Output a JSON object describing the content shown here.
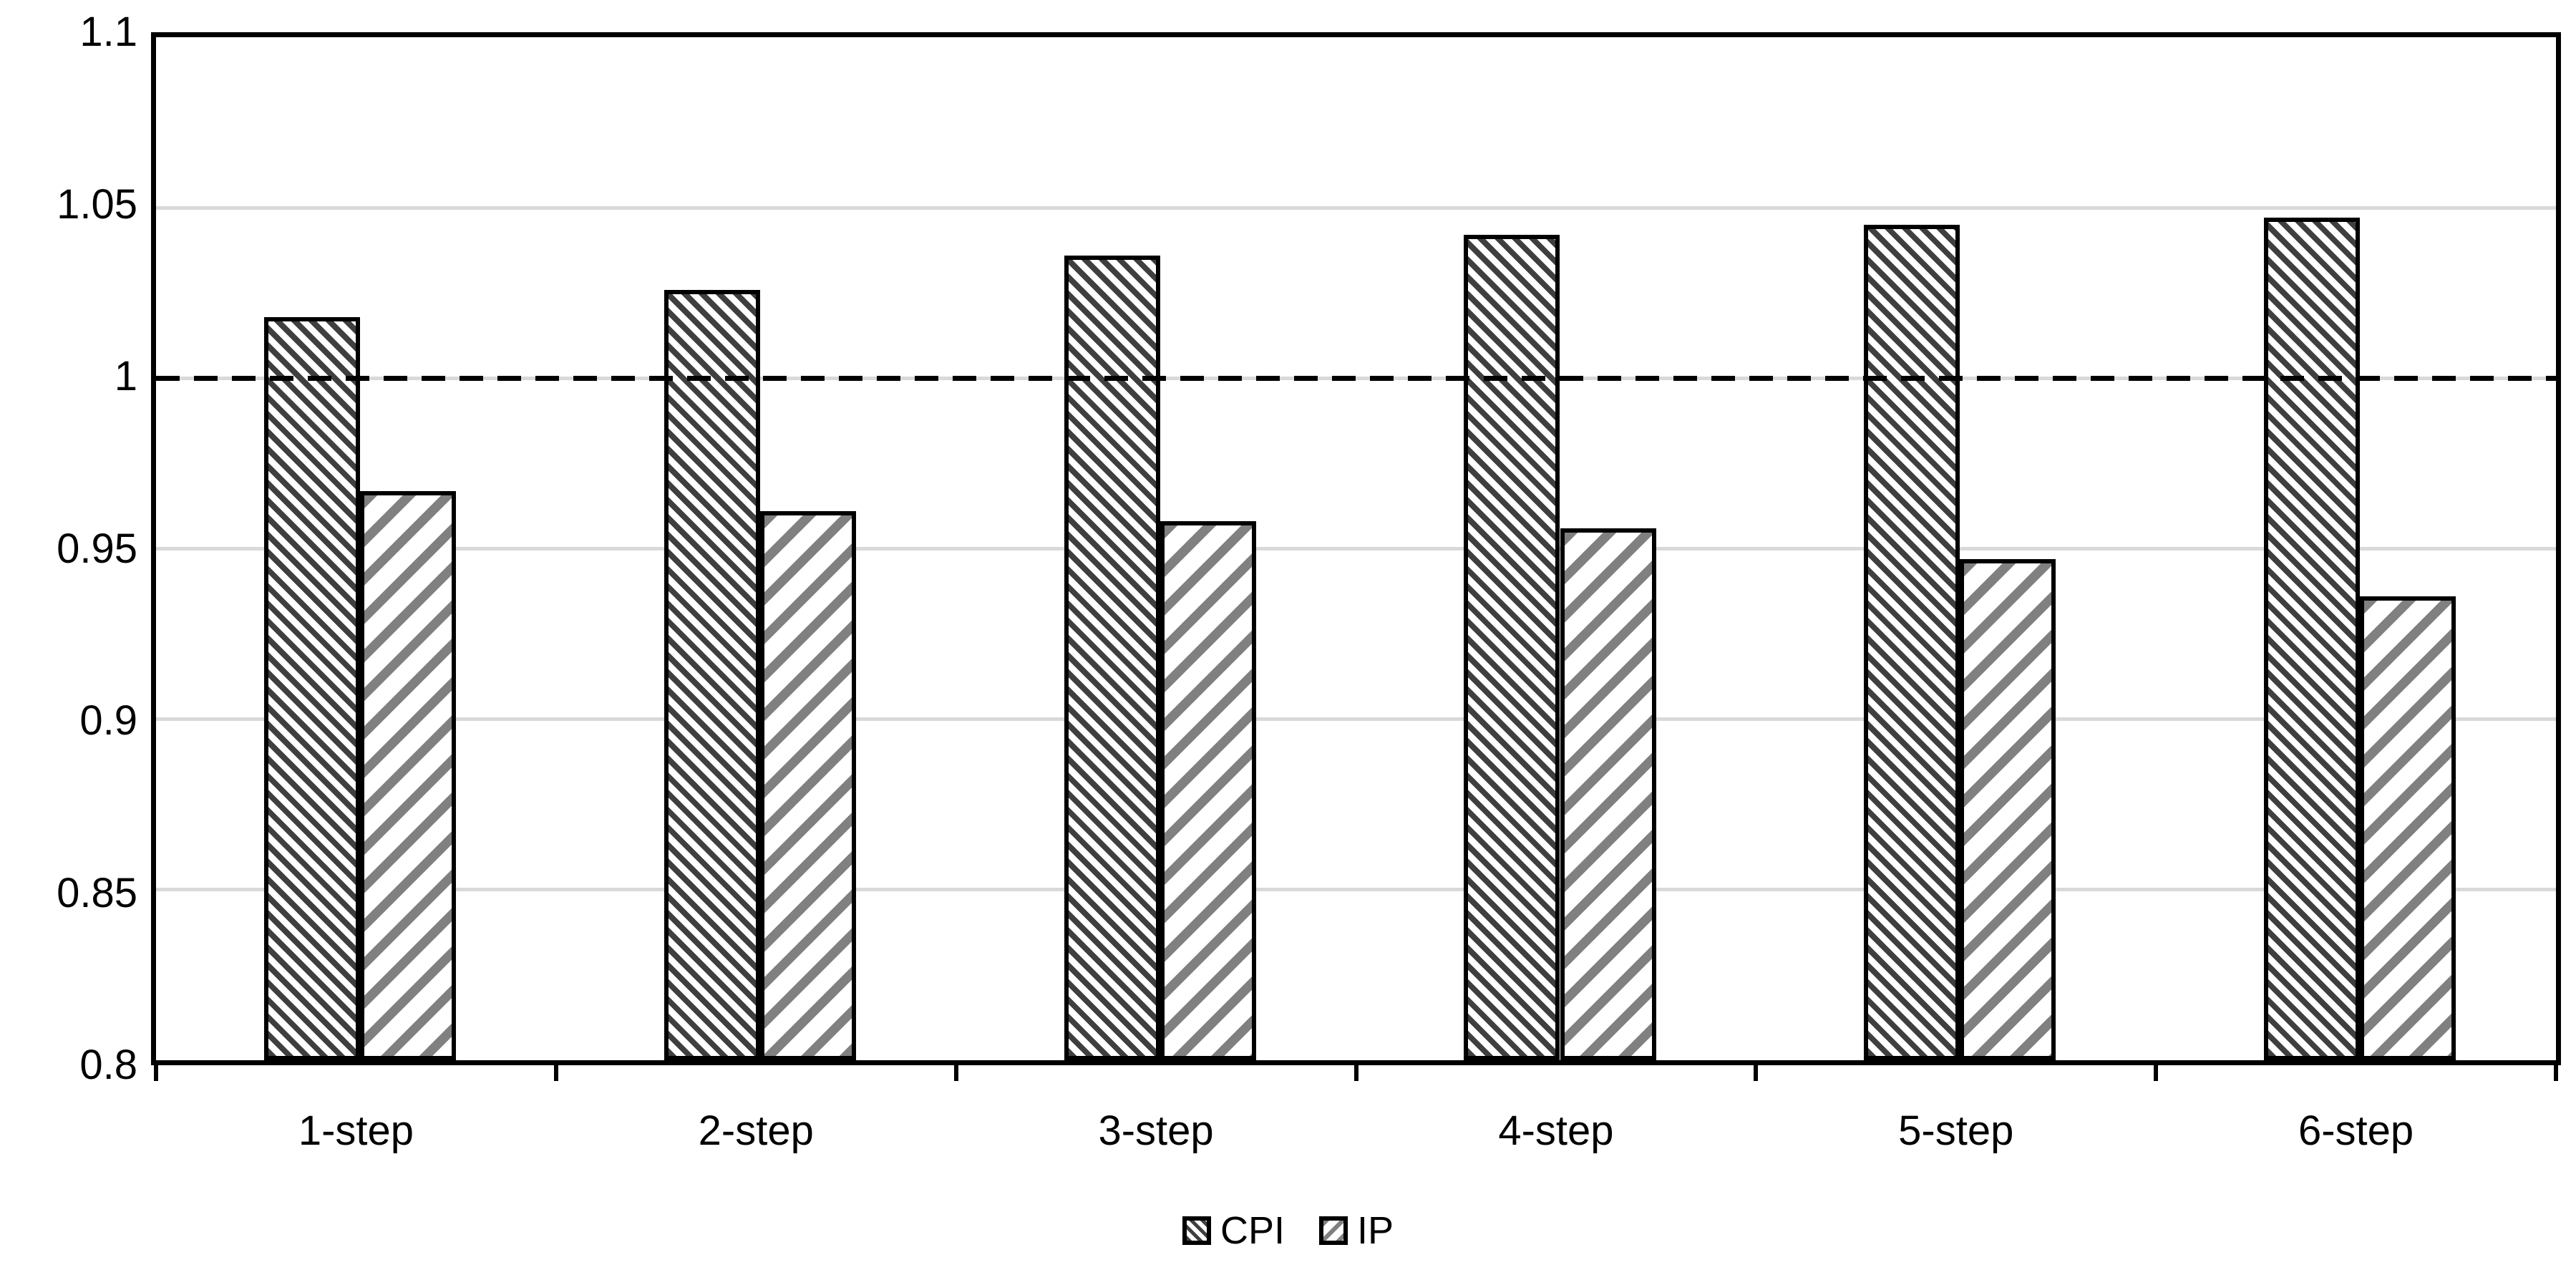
{
  "chart_data": {
    "type": "bar",
    "title": "",
    "xlabel": "",
    "ylabel": "",
    "categories": [
      "1-step",
      "2-step",
      "3-step",
      "4-step",
      "5-step",
      "6-step"
    ],
    "series": [
      {
        "name": "CPI",
        "values": [
          1.018,
          1.026,
          1.036,
          1.042,
          1.045,
          1.047
        ],
        "pattern": "diagonal-down-hatch",
        "stripe_color": "#3f3f3f",
        "fill_bg": "#ffffff"
      },
      {
        "name": "IP",
        "values": [
          0.967,
          0.961,
          0.958,
          0.956,
          0.947,
          0.936
        ],
        "pattern": "diagonal-up-hatch",
        "stripe_color": "#808080",
        "fill_bg": "#ffffff"
      }
    ],
    "ylim": [
      0.8,
      1.1
    ],
    "y_tick_values": [
      1.1,
      1.05,
      1,
      0.95,
      0.9,
      0.85,
      0.8
    ],
    "y_tick_labels": [
      "1.1",
      "1.05",
      "1",
      "0.95",
      "0.9",
      "0.85",
      "0.8"
    ],
    "reference_line": {
      "value": 1,
      "style": "dashed",
      "color": "#000000"
    },
    "grid": "horizontal",
    "gridline_color": "#d9d9d9",
    "axis_color": "#000000",
    "legend_position": "bottom-center",
    "legend_entries": [
      "CPI",
      "IP"
    ]
  }
}
